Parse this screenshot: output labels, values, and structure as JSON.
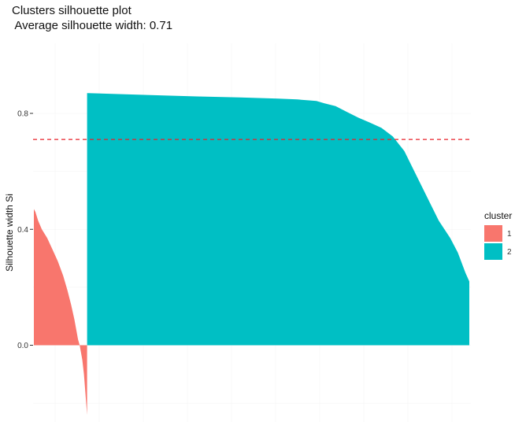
{
  "chart_data": {
    "type": "bar",
    "title": "Clusters silhouette plot",
    "subtitle": " Average silhouette width: 0.71",
    "xlabel": "",
    "ylabel": "Silhouette width Si",
    "ylim": [
      -0.24,
      0.98
    ],
    "y_ticks": [
      0.0,
      0.4,
      0.8
    ],
    "y_tick_labels": [
      "0.0",
      "0.4",
      "0.8"
    ],
    "grid": true,
    "legend_position": "right",
    "legend_title": "cluster",
    "series": [
      {
        "name": "1",
        "color": "#F8766D",
        "n_obs": 68,
        "profile": [
          [
            0.0,
            0.47
          ],
          [
            0.03,
            0.46
          ],
          [
            0.08,
            0.43
          ],
          [
            0.15,
            0.4
          ],
          [
            0.25,
            0.37
          ],
          [
            0.35,
            0.33
          ],
          [
            0.45,
            0.29
          ],
          [
            0.55,
            0.24
          ],
          [
            0.63,
            0.19
          ],
          [
            0.7,
            0.14
          ],
          [
            0.76,
            0.09
          ],
          [
            0.8,
            0.05
          ],
          [
            0.83,
            0.02
          ],
          [
            0.86,
            0.0
          ],
          [
            0.88,
            -0.02
          ],
          [
            0.91,
            -0.05
          ],
          [
            0.94,
            -0.1
          ],
          [
            0.97,
            -0.17
          ],
          [
            1.0,
            -0.24
          ]
        ]
      },
      {
        "name": "2",
        "color": "#00BFC4",
        "n_obs": 488,
        "profile": [
          [
            0.0,
            0.87
          ],
          [
            0.1,
            0.866
          ],
          [
            0.2,
            0.862
          ],
          [
            0.3,
            0.858
          ],
          [
            0.4,
            0.855
          ],
          [
            0.5,
            0.851
          ],
          [
            0.55,
            0.848
          ],
          [
            0.6,
            0.843
          ],
          [
            0.62,
            0.835
          ],
          [
            0.65,
            0.825
          ],
          [
            0.68,
            0.805
          ],
          [
            0.71,
            0.785
          ],
          [
            0.74,
            0.768
          ],
          [
            0.77,
            0.75
          ],
          [
            0.8,
            0.72
          ],
          [
            0.83,
            0.67
          ],
          [
            0.86,
            0.59
          ],
          [
            0.89,
            0.51
          ],
          [
            0.92,
            0.43
          ],
          [
            0.95,
            0.37
          ],
          [
            0.97,
            0.32
          ],
          [
            0.99,
            0.25
          ],
          [
            1.0,
            0.22
          ]
        ]
      }
    ],
    "average_silhouette": 0.71,
    "reference_line": {
      "value": 0.71,
      "color": "#E8202A",
      "style": "dashed"
    }
  }
}
